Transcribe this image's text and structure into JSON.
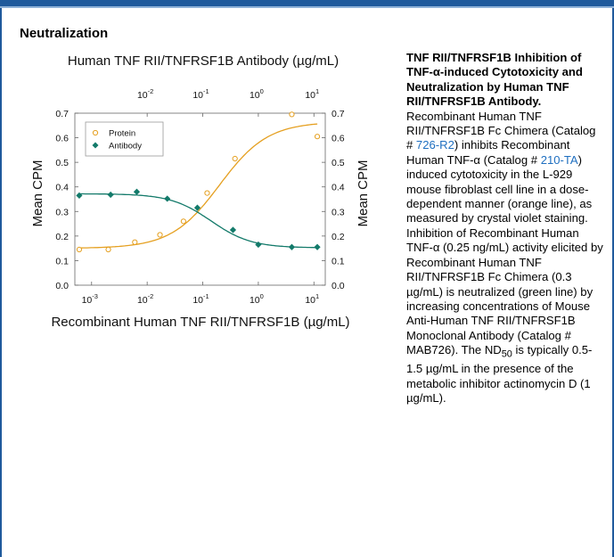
{
  "section_title": "Neutralization",
  "colors": {
    "accent": "#1f5a9c",
    "link": "#1f6fc0",
    "protein": "#e5a021",
    "antibody": "#137a6a"
  },
  "chart_data": {
    "type": "scatter",
    "title": "Human TNF RII/TNFRSF1B Antibody (µg/mL)",
    "xlabel": "Recombinant Human TNF RII/TNFRSF1B (µg/mL)",
    "ylabel": "Mean CPM",
    "ylabel_right": "Mean CPM",
    "x_scale": "log",
    "xlim": [
      0.0005,
      16
    ],
    "ylim": [
      0.0,
      0.7
    ],
    "x_ticks": [
      {
        "value": 0.001,
        "base": "10",
        "exp": "-3"
      },
      {
        "value": 0.01,
        "base": "10",
        "exp": "-2"
      },
      {
        "value": 0.1,
        "base": "10",
        "exp": "-1"
      },
      {
        "value": 1,
        "base": "10",
        "exp": "0"
      },
      {
        "value": 10,
        "base": "10",
        "exp": "1"
      }
    ],
    "top_ticks": [
      {
        "value": 0.01,
        "base": "10",
        "exp": "-2"
      },
      {
        "value": 0.1,
        "base": "10",
        "exp": "-1"
      },
      {
        "value": 1,
        "base": "10",
        "exp": "0"
      },
      {
        "value": 10,
        "base": "10",
        "exp": "1"
      }
    ],
    "y_ticks": [
      "0.0",
      "0.1",
      "0.2",
      "0.3",
      "0.4",
      "0.5",
      "0.6",
      "0.7"
    ],
    "legend_position": "top-left",
    "series": [
      {
        "name": "Protein",
        "color": "#e5a021",
        "marker": "circle",
        "x": [
          0.0006,
          0.002,
          0.006,
          0.017,
          0.045,
          0.12,
          0.38,
          4.0,
          11.5
        ],
        "y": [
          0.145,
          0.145,
          0.175,
          0.205,
          0.26,
          0.375,
          0.515,
          0.695,
          0.605
        ]
      },
      {
        "name": "Antibody",
        "color": "#137a6a",
        "marker": "diamond",
        "x": [
          0.0006,
          0.0022,
          0.0065,
          0.023,
          0.08,
          0.35,
          1.0,
          4.0,
          11.5
        ],
        "y": [
          0.365,
          0.368,
          0.38,
          0.352,
          0.315,
          0.225,
          0.165,
          0.155,
          0.155
        ]
      }
    ]
  },
  "description": {
    "title": "TNF RII/TNFRSF1B Inhibition of TNF-α-induced Cytotoxicity and Neutralization by Human TNF RII/TNFRSF1B Antibody.",
    "seg1": "Recombinant Human TNF RII/TNFRSF1B Fc Chimera (Catalog # ",
    "link1": "726-R2",
    "seg2": ") inhibits Recombinant Human TNF-α (Catalog # ",
    "link2": "210-TA",
    "seg3": ") induced cytotoxicity in the L-929 mouse fibroblast cell line in a dose-dependent manner (orange line), as measured by crystal violet staining. Inhibition of Recombinant Human TNF-α (0.25 ng/mL) activity elicited by Recombinant Human TNF RII/TNFRSF1B Fc Chimera (0.3 µg/mL) is neutralized (green line) by increasing concentrations of Mouse Anti-Human TNF RII/TNFRSF1B Monoclonal Antibody (Catalog # MAB726). The ND",
    "sub": "50",
    "seg4": " is typically 0.5-1.5 µg/mL in the presence of the metabolic inhibitor actinomycin D (1 µg/mL)."
  }
}
